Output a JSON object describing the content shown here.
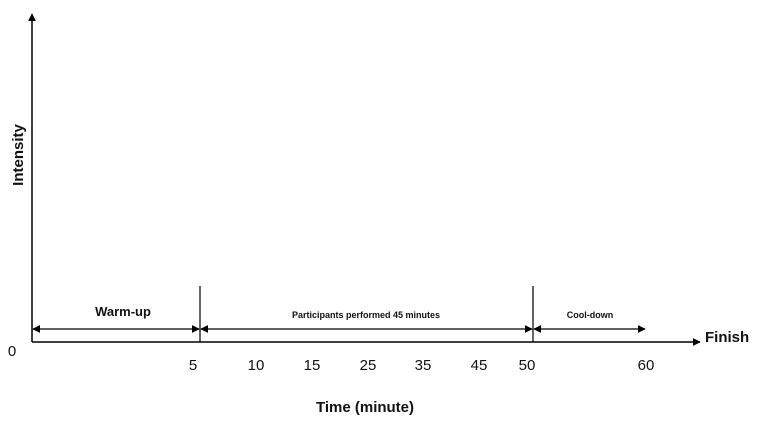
{
  "axes": {
    "y_label": "Intensity",
    "x_label": "Time (minute)",
    "origin_label": "0",
    "end_label": "Finish"
  },
  "ticks": [
    "5",
    "10",
    "15",
    "25",
    "35",
    "45",
    "50",
    "60"
  ],
  "phases": {
    "warmup": "Warm-up",
    "main": "Participants performed 45 minutes",
    "cooldown": "Cool-down"
  }
}
